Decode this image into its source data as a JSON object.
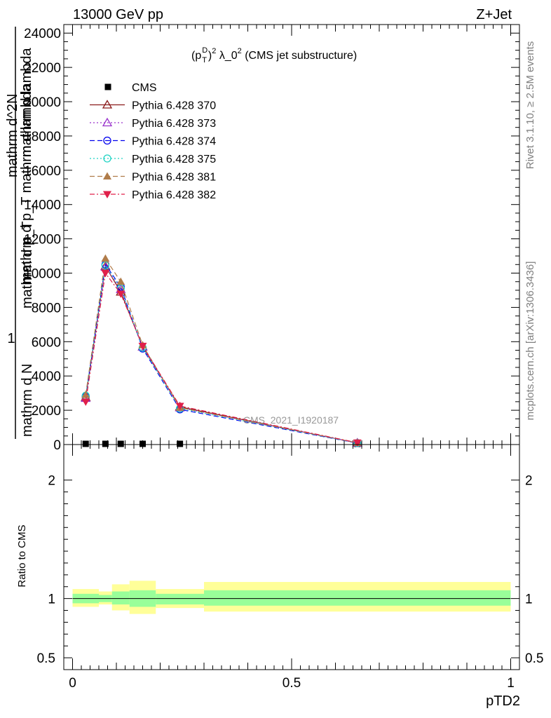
{
  "header": {
    "energy_label": "13000 GeV pp",
    "process_label": "Z+Jet"
  },
  "side_text": {
    "rivet": "Rivet 3.1.10, ≥ 2.5M events",
    "mcplots": "mcplots.cern.ch [arXiv:1306.3436]"
  },
  "watermark": "CMS_2021_I1920187",
  "chart_data": [
    {
      "type": "line",
      "panel": "main",
      "title": "(p_T^D)^2 λ_0^2 (CMS jet substructure)",
      "title_parts": {
        "open": "(p",
        "sup_d": "D",
        "sub_t": "T",
        "close": ")",
        "sup_2": "2",
        "lambda": " λ_0",
        "sup_2b": "2",
        "rest": " (CMS jet substructure)"
      },
      "ylabel_lines": [
        "1",
        "mathrm d N",
        "mathrm d p_T",
        "mathrm d^2N",
        "mathrm d p_T mathrm d lambda",
        "mathrm d lambda"
      ],
      "xlim": [
        -0.02,
        1.02
      ],
      "ylim": [
        0,
        24500
      ],
      "yticks": [
        0,
        2000,
        4000,
        6000,
        8000,
        10000,
        12000,
        14000,
        16000,
        18000,
        20000,
        22000,
        24000
      ],
      "ytick_labels": [
        "0",
        "2000",
        "4000",
        "6000",
        "8000",
        "10000",
        "12000",
        "14000",
        "16000",
        "18000",
        "20000",
        "22000",
        "24000"
      ],
      "legend_position": "top-left",
      "x": [
        0.03,
        0.075,
        0.11,
        0.16,
        0.245,
        0.65
      ],
      "series": [
        {
          "name": "CMS",
          "color": "#000000",
          "marker": "square",
          "dash": "none",
          "values": [
            0,
            0,
            0,
            0,
            0,
            0
          ]
        },
        {
          "name": "Pythia 6.428 370",
          "color": "#8b1a1a",
          "marker": "triangle-open",
          "dash": "solid",
          "values": [
            2750,
            10400,
            8900,
            5700,
            2200,
            90
          ]
        },
        {
          "name": "Pythia 6.428 373",
          "color": "#9932cc",
          "marker": "triangle-open",
          "dash": "dotted",
          "values": [
            2700,
            10350,
            9050,
            5700,
            2150,
            95
          ]
        },
        {
          "name": "Pythia 6.428 374",
          "color": "#0000ee",
          "marker": "circle-open",
          "dash": "dashed",
          "values": [
            2800,
            10500,
            9200,
            5600,
            2050,
            85
          ]
        },
        {
          "name": "Pythia 6.428 375",
          "color": "#20d4c4",
          "marker": "circle-open",
          "dash": "dotted",
          "values": [
            2850,
            10450,
            9100,
            5650,
            2100,
            90
          ]
        },
        {
          "name": "Pythia 6.428 381",
          "color": "#b07c4a",
          "marker": "triangle-filled",
          "dash": "dashed",
          "values": [
            2900,
            10850,
            9500,
            5800,
            2150,
            100
          ]
        },
        {
          "name": "Pythia 6.428 382",
          "color": "#e0204a",
          "marker": "triangle-down-filled",
          "dash": "dashdot",
          "values": [
            2500,
            10000,
            8800,
            5750,
            2250,
            110
          ]
        }
      ]
    },
    {
      "type": "area",
      "panel": "ratio",
      "ylabel": "Ratio to CMS",
      "xlabel": "pTD2",
      "xlim": [
        -0.02,
        1.02
      ],
      "ylim": [
        0.4,
        2.3
      ],
      "yticks": [
        0.5,
        1,
        2
      ],
      "ytick_labels": [
        "0.5",
        "1",
        "2"
      ],
      "xticks": [
        0,
        0.5,
        1
      ],
      "xtick_labels": [
        "0",
        "0.5",
        "1"
      ],
      "reference": 1,
      "bins": [
        {
          "x0": 0.0,
          "x1": 0.06,
          "stat_lo": 0.96,
          "stat_hi": 1.04,
          "tot_lo": 0.93,
          "tot_hi": 1.08
        },
        {
          "x0": 0.06,
          "x1": 0.09,
          "stat_lo": 0.97,
          "stat_hi": 1.03,
          "tot_lo": 0.95,
          "tot_hi": 1.06
        },
        {
          "x0": 0.09,
          "x1": 0.13,
          "stat_lo": 0.95,
          "stat_hi": 1.06,
          "tot_lo": 0.9,
          "tot_hi": 1.12
        },
        {
          "x0": 0.13,
          "x1": 0.19,
          "stat_lo": 0.93,
          "stat_hi": 1.07,
          "tot_lo": 0.87,
          "tot_hi": 1.15
        },
        {
          "x0": 0.19,
          "x1": 0.3,
          "stat_lo": 0.95,
          "stat_hi": 1.04,
          "tot_lo": 0.92,
          "tot_hi": 1.08
        },
        {
          "x0": 0.3,
          "x1": 1.0,
          "stat_lo": 0.94,
          "stat_hi": 1.07,
          "tot_lo": 0.89,
          "tot_hi": 1.14
        }
      ],
      "stat_color": "#99ff99",
      "total_color": "#ffff99"
    }
  ]
}
